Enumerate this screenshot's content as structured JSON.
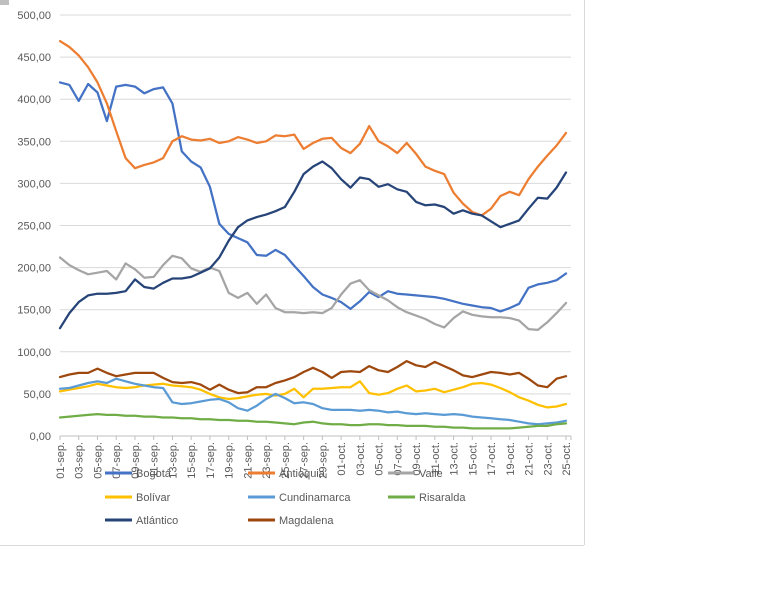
{
  "chart_data": {
    "type": "line",
    "title": "",
    "xlabel": "",
    "ylabel": "",
    "grid": true,
    "legend_position": "bottom",
    "x_total_points": 55,
    "x_tick_labels": [
      "01-sep.",
      "03-sep.",
      "05-sep.",
      "07-sep.",
      "09-sep.",
      "11-sep.",
      "13-sep.",
      "15-sep.",
      "17-sep.",
      "19-sep.",
      "21-sep.",
      "23-sep.",
      "25-sep.",
      "27-sep.",
      "29-sep.",
      "01-oct.",
      "03-oct.",
      "05-oct.",
      "07-oct.",
      "09-oct.",
      "11-oct.",
      "13-oct.",
      "15-oct.",
      "17-oct.",
      "19-oct.",
      "21-oct.",
      "23-oct.",
      "25-oct."
    ],
    "y_axis": {
      "min": 0,
      "max": 500,
      "step": 50,
      "tick_labels": [
        "500,00",
        "450,00",
        "400,00",
        "350,00",
        "300,00",
        "250,00",
        "200,00",
        "150,00",
        "100,00",
        "50,00",
        "0,00"
      ]
    },
    "axis_color": "#BFBFBF",
    "gridline_color": "#D9D9D9",
    "label_color": "#595959",
    "series": [
      {
        "id": "bogota",
        "name": "Bogotá",
        "color": "#4472C4",
        "values": [
          420,
          417,
          398,
          418,
          408,
          374,
          415,
          417,
          415,
          407,
          412,
          414,
          395,
          338,
          326,
          319,
          296,
          252,
          240,
          235,
          230,
          215,
          214,
          221,
          215,
          202,
          190,
          177,
          168,
          164,
          159,
          151,
          160,
          171,
          165,
          172,
          169,
          168,
          167,
          166,
          165,
          163,
          160,
          157,
          155,
          153,
          152,
          148,
          152,
          157,
          176,
          180,
          182,
          185,
          193
        ]
      },
      {
        "id": "antioquia",
        "name": "Antioquia",
        "color": "#ED7D31",
        "values": [
          469,
          462,
          452,
          438,
          420,
          395,
          362,
          330,
          318,
          322,
          325,
          330,
          350,
          356,
          352,
          351,
          353,
          348,
          350,
          355,
          352,
          348,
          350,
          357,
          356,
          358,
          341,
          348,
          353,
          354,
          342,
          336,
          347,
          368,
          350,
          344,
          336,
          348,
          335,
          320,
          315,
          311,
          289,
          276,
          266,
          262,
          270,
          285,
          290,
          286,
          305,
          320,
          333,
          345,
          360
        ]
      },
      {
        "id": "valle",
        "name": "Valle",
        "color": "#A5A5A5",
        "values": [
          212,
          203,
          197,
          192,
          194,
          196,
          186,
          205,
          198,
          188,
          189,
          203,
          214,
          211,
          199,
          195,
          200,
          196,
          170,
          164,
          170,
          157,
          168,
          152,
          147,
          147,
          146,
          147,
          146,
          152,
          168,
          181,
          185,
          173,
          167,
          161,
          153,
          147,
          143,
          139,
          133,
          129,
          140,
          148,
          144,
          142,
          141,
          141,
          140,
          137,
          127,
          126,
          135,
          146,
          158
        ]
      },
      {
        "id": "bolivar",
        "name": "Bolívar",
        "color": "#FFC000",
        "values": [
          53,
          55,
          57,
          59,
          62,
          60,
          58,
          57,
          58,
          60,
          61,
          62,
          60,
          59,
          58,
          55,
          50,
          46,
          44,
          45,
          47,
          49,
          50,
          48,
          50,
          56,
          46,
          56,
          56,
          57,
          58,
          58,
          65,
          51,
          49,
          51,
          56,
          60,
          53,
          54,
          56,
          52,
          55,
          58,
          62,
          63,
          61,
          57,
          52,
          46,
          42,
          37,
          34,
          35,
          38
        ]
      },
      {
        "id": "cundinamarca",
        "name": "Cundinamarca",
        "color": "#5B9BD5",
        "values": [
          56,
          57,
          60,
          63,
          65,
          63,
          68,
          65,
          62,
          60,
          58,
          57,
          40,
          38,
          39,
          41,
          43,
          44,
          40,
          33,
          30,
          36,
          44,
          50,
          45,
          39,
          40,
          38,
          33,
          31,
          31,
          31,
          30,
          31,
          30,
          28,
          29,
          27,
          26,
          27,
          26,
          25,
          26,
          25,
          23,
          22,
          21,
          20,
          19,
          17,
          15,
          14,
          15,
          16,
          18
        ]
      },
      {
        "id": "risaralda",
        "name": "Risaralda",
        "color": "#70AD47",
        "values": [
          22,
          23,
          24,
          25,
          26,
          25,
          25,
          24,
          24,
          23,
          23,
          22,
          22,
          21,
          21,
          20,
          20,
          19,
          19,
          18,
          18,
          17,
          17,
          16,
          15,
          14,
          16,
          17,
          15,
          14,
          14,
          13,
          13,
          14,
          14,
          13,
          13,
          12,
          12,
          12,
          11,
          11,
          10,
          10,
          9,
          9,
          9,
          9,
          9,
          10,
          11,
          12,
          12,
          14,
          15
        ]
      },
      {
        "id": "atlantico",
        "name": "Atlántico",
        "color": "#264478",
        "values": [
          128,
          146,
          159,
          167,
          169,
          169,
          170,
          172,
          186,
          177,
          175,
          182,
          187,
          187,
          189,
          194,
          199,
          212,
          232,
          248,
          256,
          260,
          263,
          267,
          272,
          290,
          311,
          320,
          326,
          318,
          305,
          295,
          307,
          305,
          296,
          299,
          293,
          290,
          278,
          274,
          275,
          272,
          264,
          268,
          264,
          262,
          255,
          248,
          252,
          256,
          270,
          283,
          282,
          295,
          313
        ]
      },
      {
        "id": "magdalena",
        "name": "Magdalena",
        "color": "#9E480E",
        "values": [
          70,
          73,
          75,
          75,
          80,
          75,
          71,
          73,
          75,
          75,
          75,
          69,
          64,
          63,
          64,
          61,
          55,
          61,
          55,
          51,
          52,
          58,
          58,
          63,
          66,
          70,
          76,
          81,
          76,
          69,
          76,
          77,
          76,
          83,
          78,
          76,
          82,
          89,
          84,
          82,
          88,
          83,
          78,
          72,
          70,
          73,
          76,
          75,
          73,
          75,
          68,
          60,
          58,
          68,
          71
        ]
      }
    ]
  }
}
